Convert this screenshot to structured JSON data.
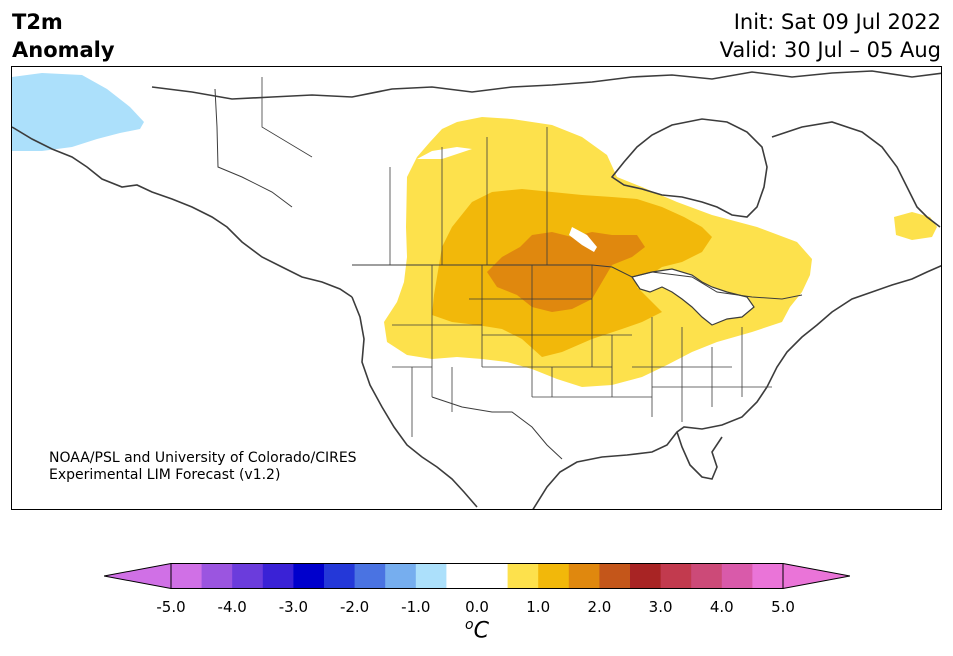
{
  "title": {
    "line1": "T2m",
    "line2": "Anomaly"
  },
  "forecast": {
    "init": "Init: Sat 09 Jul 2022",
    "valid": "Valid: 30 Jul – 05 Aug"
  },
  "credit": {
    "line1": "NOAA/PSL and University of Colorado/CIRES",
    "line2": "Experimental LIM Forecast (v1.2)"
  },
  "colorbar": {
    "unit_superscript": "o",
    "unit_base": "C",
    "ticks": [
      "-5.0",
      "-4.0",
      "-3.0",
      "-2.0",
      "-1.0",
      "0.0",
      "1.0",
      "2.0",
      "3.0",
      "4.0",
      "5.0"
    ],
    "colors": [
      "#d070e6",
      "#9b55e0",
      "#6b3cdc",
      "#3a22d6",
      "#0000cc",
      "#2438d8",
      "#4a73e2",
      "#76aeef",
      "#ace0fb",
      "#ffffff",
      "#ffffff",
      "#fde14c",
      "#f2b80a",
      "#e0880e",
      "#c4561a",
      "#a82424",
      "#c23a4e",
      "#cc4a78",
      "#d95aaa",
      "#ea74d8"
    ],
    "extend_low_color": "#d070e6",
    "extend_high_color": "#ea74d8"
  },
  "anomaly_colors": {
    "cold_1": "#ace0fb",
    "warm_1": "#fde14c",
    "warm_2": "#f2b80a",
    "warm_3": "#e0880e"
  }
}
